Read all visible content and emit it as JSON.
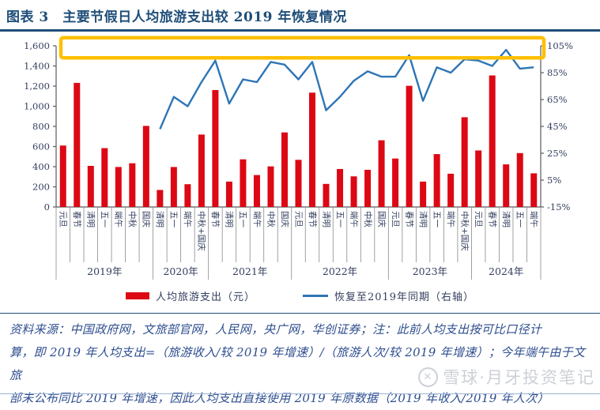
{
  "page": {
    "title": "图表 3　主要节假日人均旅游支出较 2019 年恢复情况",
    "watermark": "雪球·月牙投资笔记",
    "footer_lines": [
      "资料来源：中国政府网，文旅部官网，人民网，央广网，华创证券；注：此前人均支出按可比口径计",
      "算，即 2019 年人均支出=（旅游收入/较 2019 年增速）/（旅游人次/较 2019 年增速）；今年端午由于文旅",
      "部未公布同比 2019 年增速，因此人均支出直接使用 2019 年原数据（2019 年收入/2019 年人次）"
    ]
  },
  "legend": {
    "bar_label": "人均旅游支出（元）",
    "line_label": "恢复至2019年同期（右轴）"
  },
  "colors": {
    "bar": "#DC0814",
    "line": "#2E75B6",
    "annotation": "#FFC000",
    "axis": "#5a5a5a",
    "separator": "#8a8a8a"
  },
  "chart_data": {
    "type": "bar+line",
    "title": "主要节假日人均旅游支出较2019年恢复情况",
    "bar_series_name": "人均旅游支出（元）",
    "line_series_name": "恢复至2019年同期（右轴）",
    "left_axis": {
      "min": 0,
      "max": 1600,
      "step": 200,
      "tick_labels": [
        "0",
        "200",
        "400",
        "600",
        "800",
        "1,000",
        "1,200",
        "1,400",
        "1,600"
      ]
    },
    "right_axis": {
      "min": -15,
      "max": 105,
      "step": 20,
      "tick_labels": [
        "-15%",
        "5%",
        "25%",
        "45%",
        "65%",
        "85%",
        "105%"
      ]
    },
    "annotation_box": {
      "shape": "rectangle",
      "color": "#FFC000",
      "spans": "full width across top of plot",
      "y_bottom_pct": 96,
      "y_top_pct": 111
    },
    "years": [
      {
        "label": "2019年",
        "points": [
          {
            "h": "元旦",
            "spend": 610,
            "recovery": null
          },
          {
            "h": "春节",
            "spend": 1232,
            "recovery": null
          },
          {
            "h": "清明",
            "spend": 408,
            "recovery": null
          },
          {
            "h": "五一",
            "spend": 584,
            "recovery": null
          },
          {
            "h": "端午",
            "spend": 397,
            "recovery": null
          },
          {
            "h": "中秋",
            "spend": 434,
            "recovery": null
          },
          {
            "h": "国庆",
            "spend": 805,
            "recovery": null
          }
        ]
      },
      {
        "label": "2020年",
        "points": [
          {
            "h": "清明",
            "spend": 169,
            "recovery": 43
          },
          {
            "h": "五一",
            "spend": 397,
            "recovery": 67
          },
          {
            "h": "端午",
            "spend": 226,
            "recovery": 60
          },
          {
            "h": "中秋+国庆",
            "spend": 719,
            "recovery": 78
          }
        ]
      },
      {
        "label": "2021年",
        "points": [
          {
            "h": "春节",
            "spend": 1161,
            "recovery": 94
          },
          {
            "h": "清明",
            "spend": 252,
            "recovery": 62
          },
          {
            "h": "五一",
            "spend": 473,
            "recovery": 80
          },
          {
            "h": "端午",
            "spend": 317,
            "recovery": 78
          },
          {
            "h": "中秋",
            "spend": 403,
            "recovery": 93
          },
          {
            "h": "国庆",
            "spend": 740,
            "recovery": 91
          }
        ]
      },
      {
        "label": "2022年",
        "points": [
          {
            "h": "元旦",
            "spend": 468,
            "recovery": 80
          },
          {
            "h": "春节",
            "spend": 1135,
            "recovery": 93
          },
          {
            "h": "清明",
            "spend": 229,
            "recovery": 57
          },
          {
            "h": "五一",
            "spend": 377,
            "recovery": 67
          },
          {
            "h": "端午",
            "spend": 304,
            "recovery": 79
          },
          {
            "h": "中秋",
            "spend": 369,
            "recovery": 86
          },
          {
            "h": "国庆",
            "spend": 662,
            "recovery": 82
          }
        ]
      },
      {
        "label": "2023年",
        "points": [
          {
            "h": "元旦",
            "spend": 481,
            "recovery": 82
          },
          {
            "h": "春节",
            "spend": 1203,
            "recovery": 98
          },
          {
            "h": "清明",
            "spend": 252,
            "recovery": 64
          },
          {
            "h": "五一",
            "spend": 525,
            "recovery": 89
          },
          {
            "h": "端午",
            "spend": 330,
            "recovery": 85
          },
          {
            "h": "中秋+国庆",
            "spend": 891,
            "recovery": 95
          }
        ]
      },
      {
        "label": "2024年",
        "points": [
          {
            "h": "元旦",
            "spend": 561,
            "recovery": 94
          },
          {
            "h": "春节",
            "spend": 1306,
            "recovery": 90
          },
          {
            "h": "清明",
            "spend": 423,
            "recovery": 102
          },
          {
            "h": "五一",
            "spend": 535,
            "recovery": 88
          },
          {
            "h": "端午",
            "spend": 334,
            "recovery": 89
          }
        ]
      }
    ]
  }
}
